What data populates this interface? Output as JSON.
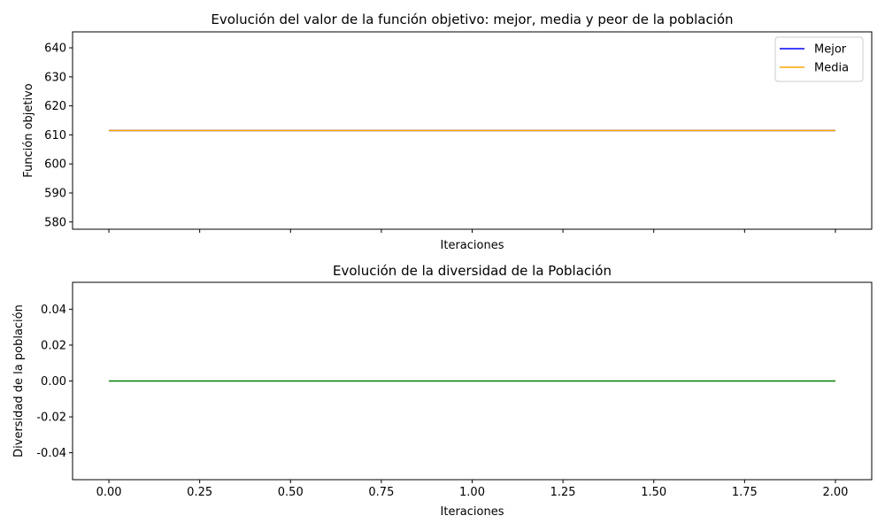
{
  "chart_data": [
    {
      "type": "line",
      "title": "Evolución del valor de la función objetivo: mejor, media y peor de la población",
      "xlabel": "Iteraciones",
      "ylabel": "Función objetivo",
      "xlim": [
        -0.1,
        2.1
      ],
      "ylim": [
        577.5,
        645.5
      ],
      "x_ticks": [
        0,
        0.25,
        0.5,
        0.75,
        1.0,
        1.25,
        1.5,
        1.75,
        2.0
      ],
      "x_tick_labels_visible": false,
      "y_ticks": [
        580,
        590,
        600,
        610,
        620,
        630,
        640
      ],
      "y_tick_labels": [
        "580",
        "590",
        "600",
        "610",
        "620",
        "630",
        "640"
      ],
      "grid": false,
      "legend": {
        "position": "top-right",
        "entries": [
          "Mejor",
          "Media"
        ]
      },
      "series": [
        {
          "name": "Mejor",
          "color": "#0000ff",
          "x": [
            0,
            1,
            2
          ],
          "y": [
            611.5,
            611.5,
            611.5
          ]
        },
        {
          "name": "Media",
          "color": "#ffa500",
          "x": [
            0,
            1,
            2
          ],
          "y": [
            611.5,
            611.5,
            611.5
          ]
        }
      ]
    },
    {
      "type": "line",
      "title": "Evolución de la diversidad de la Población",
      "xlabel": "Iteraciones",
      "ylabel": "Diversidad de la población",
      "xlim": [
        -0.1,
        2.1
      ],
      "ylim": [
        -0.055,
        0.055
      ],
      "x_ticks": [
        0,
        0.25,
        0.5,
        0.75,
        1.0,
        1.25,
        1.5,
        1.75,
        2.0
      ],
      "x_tick_labels": [
        "0.00",
        "0.25",
        "0.50",
        "0.75",
        "1.00",
        "1.25",
        "1.50",
        "1.75",
        "2.00"
      ],
      "x_tick_labels_visible": true,
      "y_ticks": [
        -0.04,
        -0.02,
        0.0,
        0.02,
        0.04
      ],
      "y_tick_labels": [
        "-0.04",
        "-0.02",
        "0.00",
        "0.02",
        "0.04"
      ],
      "grid": false,
      "series": [
        {
          "color": "#008000",
          "x": [
            0,
            1,
            2
          ],
          "y": [
            0,
            0,
            0
          ]
        }
      ]
    }
  ]
}
